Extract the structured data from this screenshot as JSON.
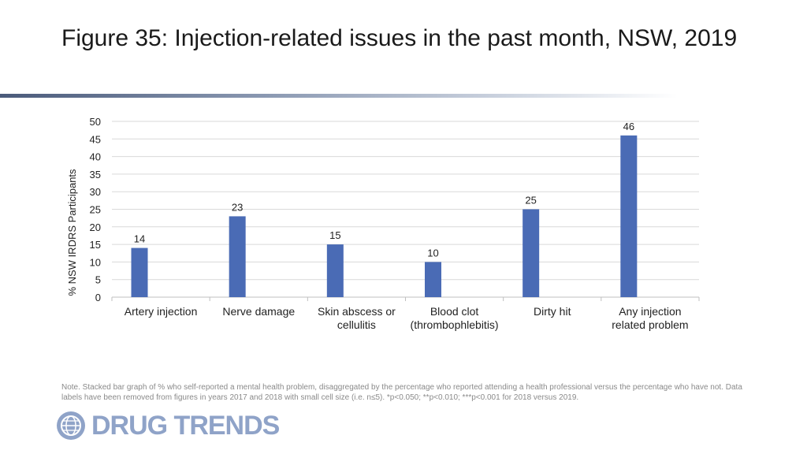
{
  "title": "Figure 35: Injection-related issues in the past month, NSW, 2019",
  "note": "Note. Stacked bar graph of % who self-reported a mental health problem, disaggregated by the percentage who reported attending a health professional versus the percentage who have not. Data labels have been removed from figures in years 2017 and 2018 with small cell size (i.e. n≤5). *p<0.050; **p<0.010; ***p<0.001 for 2018 versus 2019.",
  "logo": {
    "text": "DRUG TRENDS",
    "icon": "globe-icon"
  },
  "colors": {
    "bar": "#4a6bb5",
    "grid": "#d9d9d9",
    "text": "#222222"
  },
  "chart_data": {
    "type": "bar",
    "title": "",
    "xlabel": "",
    "ylabel": "% NSW IRDRS Participants",
    "ylim": [
      0,
      50
    ],
    "yticks": [
      0,
      5,
      10,
      15,
      20,
      25,
      30,
      35,
      40,
      45,
      50
    ],
    "grid": true,
    "categories": [
      [
        "Artery injection"
      ],
      [
        "Nerve damage"
      ],
      [
        "Skin abscess or",
        "cellulitis"
      ],
      [
        "Blood clot",
        "(thrombophlebitis)"
      ],
      [
        "Dirty hit"
      ],
      [
        "Any injection",
        "related problem"
      ]
    ],
    "values": [
      14,
      23,
      15,
      10,
      25,
      46
    ]
  }
}
